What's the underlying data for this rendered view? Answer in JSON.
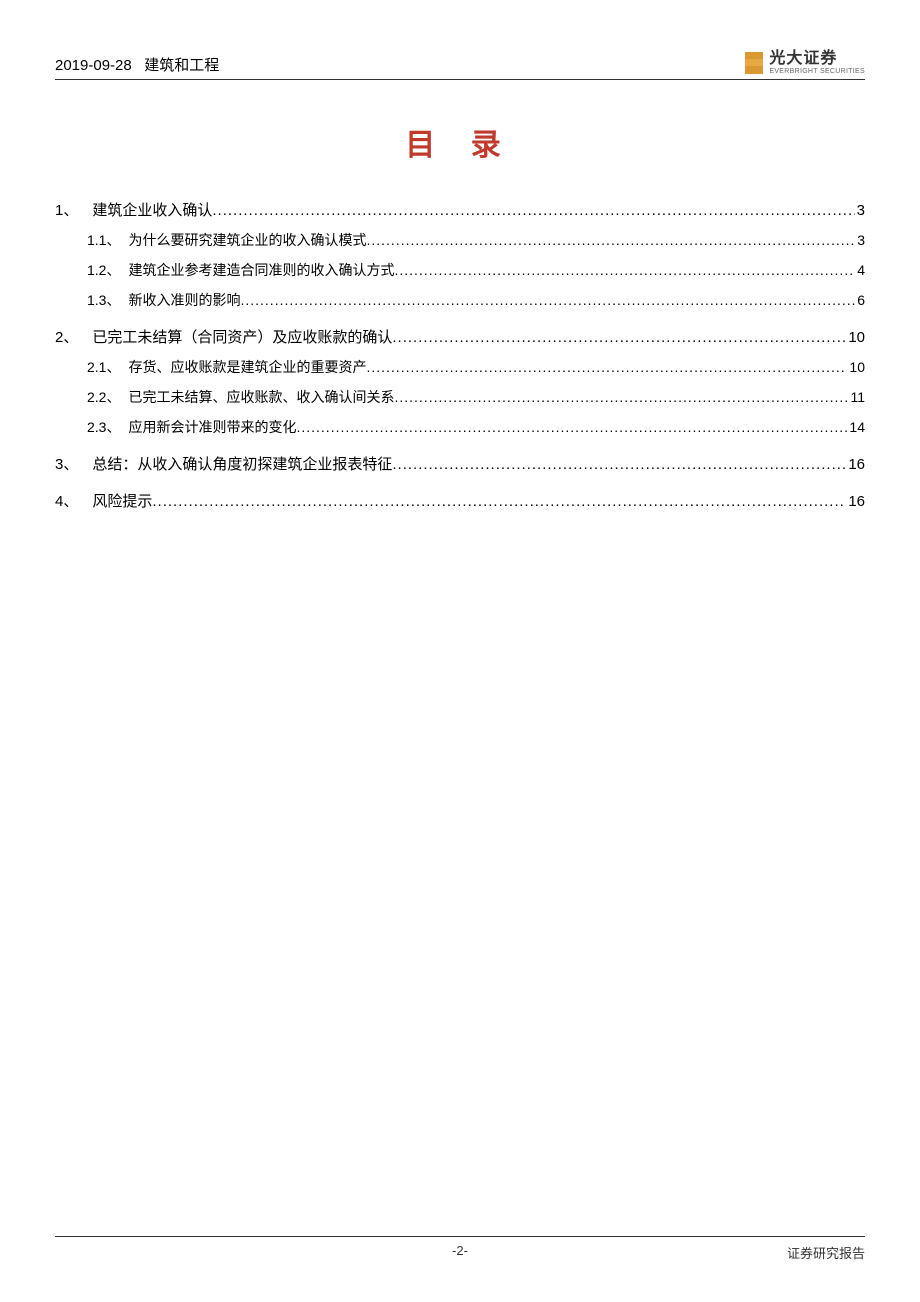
{
  "header": {
    "date": "2019-09-28",
    "category": "建筑和工程",
    "company_cn": "光大证券",
    "company_en": "EVERBRIGHT SECURITIES"
  },
  "title": "目 录",
  "title_color": "#c0392b",
  "toc": [
    {
      "num": "1、",
      "label": "建筑企业收入确认",
      "page": "3",
      "children": [
        {
          "num": "1.1、",
          "label": "为什么要研究建筑企业的收入确认模式",
          "page": "3"
        },
        {
          "num": "1.2、",
          "label": "建筑企业参考建造合同准则的收入确认方式",
          "page": "4"
        },
        {
          "num": "1.3、",
          "label": "新收入准则的影响",
          "page": "6"
        }
      ]
    },
    {
      "num": "2、",
      "label": "已完工未结算（合同资产）及应收账款的确认",
      "page": "10",
      "children": [
        {
          "num": "2.1、",
          "label": "存货、应收账款是建筑企业的重要资产",
          "page": "10"
        },
        {
          "num": "2.2、",
          "label": "已完工未结算、应收账款、收入确认间关系",
          "page": "11"
        },
        {
          "num": "2.3、",
          "label": "应用新会计准则带来的变化",
          "page": "14"
        }
      ]
    },
    {
      "num": "3、",
      "label": "总结：从收入确认角度初探建筑企业报表特征",
      "page": "16",
      "children": []
    },
    {
      "num": "4、",
      "label": "风险提示",
      "page": "16",
      "children": []
    }
  ],
  "footer": {
    "page_num": "-2-",
    "report_type": "证券研究报告"
  }
}
